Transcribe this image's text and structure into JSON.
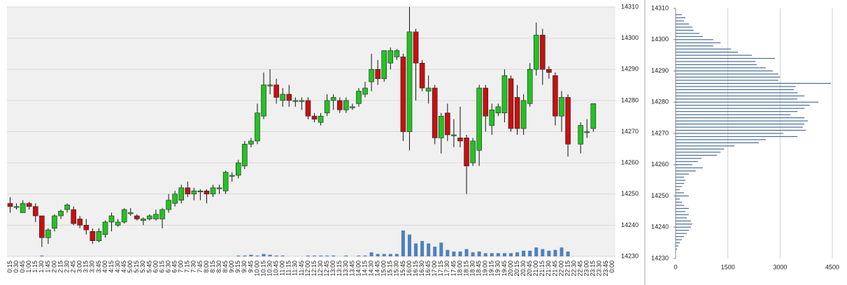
{
  "chart_data": [
    {
      "type": "candlestick",
      "categories": [
        "0:15",
        "0:30",
        "0:45",
        "1:00",
        "1:15",
        "1:30",
        "1:45",
        "2:00",
        "2:15",
        "2:30",
        "2:45",
        "3:00",
        "3:15",
        "3:30",
        "3:45",
        "4:00",
        "4:15",
        "4:30",
        "4:45",
        "5:00",
        "5:15",
        "5:30",
        "5:45",
        "6:00",
        "6:15",
        "6:30",
        "6:45",
        "7:00",
        "7:15",
        "7:30",
        "7:45",
        "8:00",
        "8:15",
        "8:30",
        "8:45",
        "9:00",
        "9:15",
        "9:30",
        "9:45",
        "10:00",
        "10:15",
        "10:30",
        "10:45",
        "11:00",
        "11:15",
        "11:30",
        "11:45",
        "12:00",
        "12:15",
        "12:30",
        "12:45",
        "13:00",
        "13:15",
        "13:30",
        "13:45",
        "14:00",
        "14:15",
        "14:30",
        "14:45",
        "15:00",
        "15:15",
        "15:30",
        "15:45",
        "16:00",
        "16:15",
        "16:30",
        "16:45",
        "17:00",
        "17:15",
        "17:30",
        "17:45",
        "18:00",
        "18:15",
        "18:30",
        "18:45",
        "19:00",
        "19:15",
        "19:30",
        "19:45",
        "20:00",
        "20:15",
        "20:30",
        "20:45",
        "21:00",
        "21:15",
        "21:30",
        "21:45",
        "22:00",
        "22:15",
        "22:30",
        "22:45",
        "23:00",
        "23:15",
        "23:30",
        "23:45",
        "0:00"
      ],
      "open": [
        14247,
        14246,
        14244,
        14247,
        14246,
        14243,
        14236,
        14239,
        14243,
        14245,
        14245,
        14242,
        14240,
        14238,
        14235,
        14237,
        14241,
        14240,
        14241,
        14244,
        14243,
        14241.5,
        14242,
        14242,
        14242,
        14245,
        14247,
        14248,
        14252,
        14250,
        14251,
        14251,
        14250,
        14252,
        14251,
        14256,
        14256,
        14259,
        14266,
        14267,
        14275,
        14285,
        14285,
        14280,
        14282,
        14280,
        14280,
        14280,
        14275,
        14273,
        14276,
        14280,
        14280,
        14277,
        14278,
        14279,
        14282,
        14286,
        14290,
        14287,
        14292,
        14294,
        14294,
        14270,
        14302,
        14292,
        14283,
        14284,
        14268,
        14276,
        14269,
        14268,
        14268,
        14260,
        14264,
        14284,
        14272,
        14276,
        14276,
        14287,
        14281,
        14271,
        14279,
        14290,
        14301,
        14290,
        14288,
        14275,
        14281,
        null,
        14266,
        14270,
        14271,
        null,
        null,
        null
      ],
      "high": [
        14249,
        14247,
        14248,
        14247.5,
        14247,
        14243,
        14239,
        14243.5,
        14245,
        14247,
        14246,
        14243,
        14242,
        14239,
        14239,
        14241.5,
        14244,
        14242,
        14245.5,
        14245.5,
        14243.5,
        14242.5,
        14243.5,
        14245,
        14245.5,
        14250,
        14251,
        14253,
        14254,
        14252,
        14251.5,
        14251.5,
        14253,
        14253,
        14257.5,
        14257,
        14261,
        14267,
        14268,
        14279,
        14289,
        14290,
        14287,
        14284,
        14285,
        14281,
        14281,
        14281,
        14276,
        14276,
        14282,
        14282,
        14281,
        14281,
        14279,
        14284,
        14286,
        14295,
        14293,
        14296,
        14297,
        14296.5,
        14295,
        14310,
        14303,
        14293,
        14288,
        14285,
        14276,
        14279,
        14274,
        14278,
        14269,
        14268,
        14285,
        14285,
        14279,
        14279,
        14290,
        14288,
        14285,
        14282,
        14292,
        14305,
        14303,
        14291,
        14289,
        14283,
        14282,
        null,
        14273,
        14274,
        14279,
        null,
        null,
        null
      ],
      "low": [
        14244,
        14245,
        14244,
        14245,
        14241,
        14233,
        14234,
        14238,
        14242,
        14244,
        14240,
        14239,
        14237,
        14234,
        14234.5,
        14236,
        14238,
        14239.5,
        14240.5,
        14243,
        14241.5,
        14240,
        14241.5,
        14241.5,
        14239,
        14244,
        14246,
        14247,
        14249,
        14248,
        14248,
        14247,
        14249,
        14250,
        14250,
        14254,
        14255,
        14258,
        14265,
        14266,
        14274,
        14282,
        14279,
        14278,
        14278,
        14278,
        14277,
        14274,
        14273,
        14272,
        14275,
        14277,
        14276,
        14276,
        14277,
        14278,
        14281,
        14283,
        14285,
        14286,
        14290,
        14293,
        14267,
        14264,
        14280,
        14283,
        14279,
        14266,
        14263,
        14267,
        14265,
        14265,
        14250,
        14259,
        14259,
        14270,
        14269,
        14275,
        14273,
        14270,
        14269,
        14269,
        14278,
        14288,
        14285,
        14287,
        14272,
        14270,
        14262,
        null,
        14263,
        14268,
        14270,
        null,
        null,
        null
      ],
      "close": [
        14246,
        14246,
        14247,
        14246,
        14243,
        14236,
        14238.5,
        14243,
        14244.5,
        14246.5,
        14240.5,
        14240,
        14238.5,
        14235,
        14238,
        14241,
        14243,
        14241,
        14245,
        14244,
        14242,
        14242,
        14243,
        14243.5,
        14245,
        14248,
        14250,
        14252,
        14250,
        14251,
        14251,
        14250,
        14252,
        14252,
        14257,
        14256,
        14260,
        14266,
        14267,
        14276,
        14285,
        14285,
        14281,
        14282,
        14280,
        14280,
        14280,
        14275,
        14274,
        14275,
        14280,
        14281,
        14277,
        14280,
        14278,
        14283,
        14284,
        14290,
        14287,
        14296,
        14296,
        14296,
        14270,
        14302,
        14292,
        14284,
        14284,
        14268,
        14275,
        14269,
        14269,
        14267,
        14259,
        14267,
        14284,
        14275,
        14277,
        14278,
        14288,
        14271,
        14271,
        14280,
        14290,
        14301,
        14290,
        14289,
        14275,
        14281,
        14266,
        null,
        14272,
        14270,
        14279,
        null,
        null,
        null
      ],
      "volume": [
        0,
        0,
        0,
        0,
        0,
        1,
        0,
        0,
        0,
        0,
        0,
        0,
        0,
        0,
        0,
        0,
        0,
        0,
        0,
        0,
        0,
        0,
        0,
        0,
        0,
        0,
        0,
        0,
        0,
        0,
        0,
        0,
        0,
        0,
        0,
        0,
        1,
        1,
        2,
        1,
        3,
        2,
        1,
        1,
        0,
        0,
        0,
        1,
        1,
        1,
        1,
        1,
        0,
        1,
        0,
        1,
        1,
        5,
        3,
        3,
        3,
        3,
        32,
        27,
        16,
        19,
        16,
        12,
        17,
        8,
        6,
        6,
        9,
        5,
        6,
        4,
        4,
        4,
        4,
        4,
        5,
        7,
        7,
        11,
        9,
        7,
        8,
        11,
        6,
        null,
        null,
        null,
        null,
        null,
        null,
        null
      ],
      "up_color": "#22c322",
      "down_color": "#c81010",
      "volume_color": "#4f81bd",
      "ylim": [
        14230,
        14310
      ],
      "yticks": [
        14230,
        14240,
        14250,
        14260,
        14270,
        14280,
        14290,
        14300,
        14310
      ],
      "grid": true
    },
    {
      "type": "bar",
      "orientation": "horizontal",
      "y": [
        14308,
        14307,
        14306,
        14305,
        14304,
        14303,
        14302,
        14301,
        14300,
        14299,
        14298,
        14297,
        14296,
        14295,
        14294,
        14293,
        14292,
        14291,
        14290,
        14289,
        14288,
        14287,
        14286,
        14285,
        14284,
        14283,
        14282,
        14281,
        14280,
        14279,
        14278,
        14277,
        14276,
        14275,
        14274,
        14273,
        14272,
        14271,
        14270,
        14269,
        14268,
        14267,
        14266,
        14265,
        14264,
        14263,
        14262,
        14261,
        14260,
        14259,
        14258,
        14257,
        14256,
        14255,
        14254,
        14253,
        14252,
        14251,
        14250,
        14249,
        14248,
        14247,
        14246,
        14245,
        14244,
        14243,
        14242,
        14241,
        14240,
        14239,
        14238,
        14237,
        14236,
        14235,
        14234,
        14233
      ],
      "values": [
        180,
        280,
        240,
        380,
        480,
        520,
        680,
        780,
        1080,
        1290,
        1080,
        1590,
        1790,
        2190,
        2850,
        2290,
        2330,
        2590,
        2790,
        2950,
        3000,
        2950,
        4460,
        3450,
        3400,
        3500,
        3700,
        3500,
        4100,
        3850,
        3700,
        3500,
        3300,
        3700,
        3800,
        3700,
        3650,
        3740,
        3090,
        3500,
        2590,
        2390,
        1690,
        1390,
        1290,
        1190,
        740,
        640,
        480,
        780,
        580,
        380,
        240,
        280,
        240,
        180,
        120,
        240,
        380,
        120,
        180,
        240,
        380,
        280,
        380,
        320,
        440,
        480,
        440,
        380,
        320,
        240,
        180,
        120,
        80,
        40
      ],
      "color": "#4a6f94",
      "xlim": [
        0,
        4500
      ],
      "xticks": [
        0,
        1500,
        3000,
        4500
      ],
      "ylim": [
        14230,
        14310
      ],
      "yticks": [
        14230,
        14240,
        14250,
        14260,
        14270,
        14280,
        14290,
        14300,
        14310
      ],
      "grid": true
    }
  ]
}
